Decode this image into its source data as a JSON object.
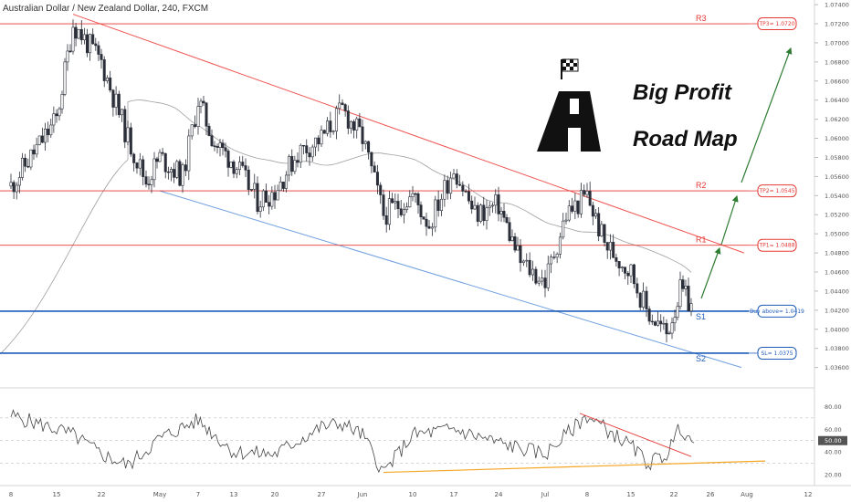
{
  "header": {
    "symbol_title": "Australian Dollar / New Zealand Dollar, 240, FXCM"
  },
  "overlay_text": {
    "line1": "Big Profit",
    "line2": "Road Map"
  },
  "icons": {
    "flag": "checkered-flag-icon",
    "road": "road-icon"
  },
  "colors": {
    "bull_candle": "#2a2e39",
    "bear_candle": "#2a2e39",
    "resistance": "#e53935",
    "support": "#1e5bb8",
    "upper_trendline": "#ef5350",
    "lower_trendline": "#6fa0e0",
    "moving_average": "#9e9e9e",
    "arrow": "#2e7d32",
    "rsi_line": "#444444",
    "rsi_trend_red": "#e53935",
    "rsi_trend_orange": "#f5a623"
  },
  "chart_data": [
    {
      "type": "line",
      "role": "price-candles",
      "title": "Australian Dollar / New Zealand Dollar, 240, FXCM",
      "x_tick_labels": [
        "8",
        "15",
        "22",
        "May",
        "7",
        "13",
        "20",
        "27",
        "Jun",
        "10",
        "17",
        "24",
        "Jul",
        "8",
        "15",
        "22",
        "26",
        "Aug",
        "12"
      ],
      "y_tick_labels": [
        "1.03600",
        "1.03800",
        "1.04000",
        "1.04200",
        "1.04400",
        "1.04600",
        "1.04800",
        "1.05000",
        "1.05200",
        "1.05400",
        "1.05600",
        "1.05800",
        "1.06000",
        "1.06200",
        "1.06400",
        "1.06600",
        "1.06800",
        "1.07000",
        "1.07200",
        "1.07400"
      ],
      "ylim": [
        1.0352,
        1.0742
      ],
      "approx_close_path": [
        {
          "x": "8",
          "y": 1.055
        },
        {
          "x": "15",
          "y": 1.062
        },
        {
          "x": "18",
          "y": 1.072
        },
        {
          "x": "22",
          "y": 1.068
        },
        {
          "x": "25",
          "y": 1.06
        },
        {
          "x": "29",
          "y": 1.0555
        },
        {
          "x": "May",
          "y": 1.058
        },
        {
          "x": "3",
          "y": 1.056
        },
        {
          "x": "7",
          "y": 1.064
        },
        {
          "x": "10",
          "y": 1.0595
        },
        {
          "x": "13",
          "y": 1.0575
        },
        {
          "x": "17",
          "y": 1.0535
        },
        {
          "x": "20",
          "y": 1.0545
        },
        {
          "x": "23",
          "y": 1.0585
        },
        {
          "x": "27",
          "y": 1.06
        },
        {
          "x": "30",
          "y": 1.063
        },
        {
          "x": "Jun",
          "y": 1.06
        },
        {
          "x": "6",
          "y": 1.052
        },
        {
          "x": "10",
          "y": 1.054
        },
        {
          "x": "13",
          "y": 1.051
        },
        {
          "x": "17",
          "y": 1.057
        },
        {
          "x": "20",
          "y": 1.052
        },
        {
          "x": "24",
          "y": 1.053
        },
        {
          "x": "27",
          "y": 1.047
        },
        {
          "x": "Jul",
          "y": 1.045
        },
        {
          "x": "5",
          "y": 1.052
        },
        {
          "x": "8",
          "y": 1.054
        },
        {
          "x": "11",
          "y": 1.049
        },
        {
          "x": "15",
          "y": 1.046
        },
        {
          "x": "18",
          "y": 1.042
        },
        {
          "x": "21",
          "y": 1.0395
        },
        {
          "x": "23",
          "y": 1.044
        },
        {
          "x": "24",
          "y": 1.0425
        }
      ],
      "levels": [
        {
          "name": "R3",
          "value": 1.072,
          "label": "TP3= 1.0720"
        },
        {
          "name": "R2",
          "value": 1.0545,
          "label": "TP2= 1.0545"
        },
        {
          "name": "R1",
          "value": 1.0488,
          "label": "TP1= 1.0488"
        },
        {
          "name": "S1",
          "value": 1.0419,
          "label": "Buy above= 1.0419"
        },
        {
          "name": "S2",
          "value": 1.0375,
          "label": "SL= 1.0375"
        }
      ],
      "grid": false
    },
    {
      "type": "line",
      "role": "rsi",
      "y_tick_labels": [
        "20.00",
        "40.00",
        "60.00",
        "80.00"
      ],
      "current_value_label": "50.00",
      "ylim": [
        12,
        90
      ],
      "approx_values": [
        {
          "x": "8",
          "y": 72
        },
        {
          "x": "15",
          "y": 60
        },
        {
          "x": "18",
          "y": 55
        },
        {
          "x": "22",
          "y": 38
        },
        {
          "x": "29",
          "y": 28
        },
        {
          "x": "May",
          "y": 52
        },
        {
          "x": "7",
          "y": 68
        },
        {
          "x": "13",
          "y": 40
        },
        {
          "x": "20",
          "y": 38
        },
        {
          "x": "27",
          "y": 62
        },
        {
          "x": "30",
          "y": 65
        },
        {
          "x": "Jun",
          "y": 55
        },
        {
          "x": "6",
          "y": 22
        },
        {
          "x": "10",
          "y": 55
        },
        {
          "x": "17",
          "y": 60
        },
        {
          "x": "24",
          "y": 48
        },
        {
          "x": "Jul",
          "y": 38
        },
        {
          "x": "8",
          "y": 72
        },
        {
          "x": "15",
          "y": 45
        },
        {
          "x": "18",
          "y": 30
        },
        {
          "x": "21",
          "y": 38
        },
        {
          "x": "22",
          "y": 62
        },
        {
          "x": "24",
          "y": 48
        }
      ]
    }
  ]
}
